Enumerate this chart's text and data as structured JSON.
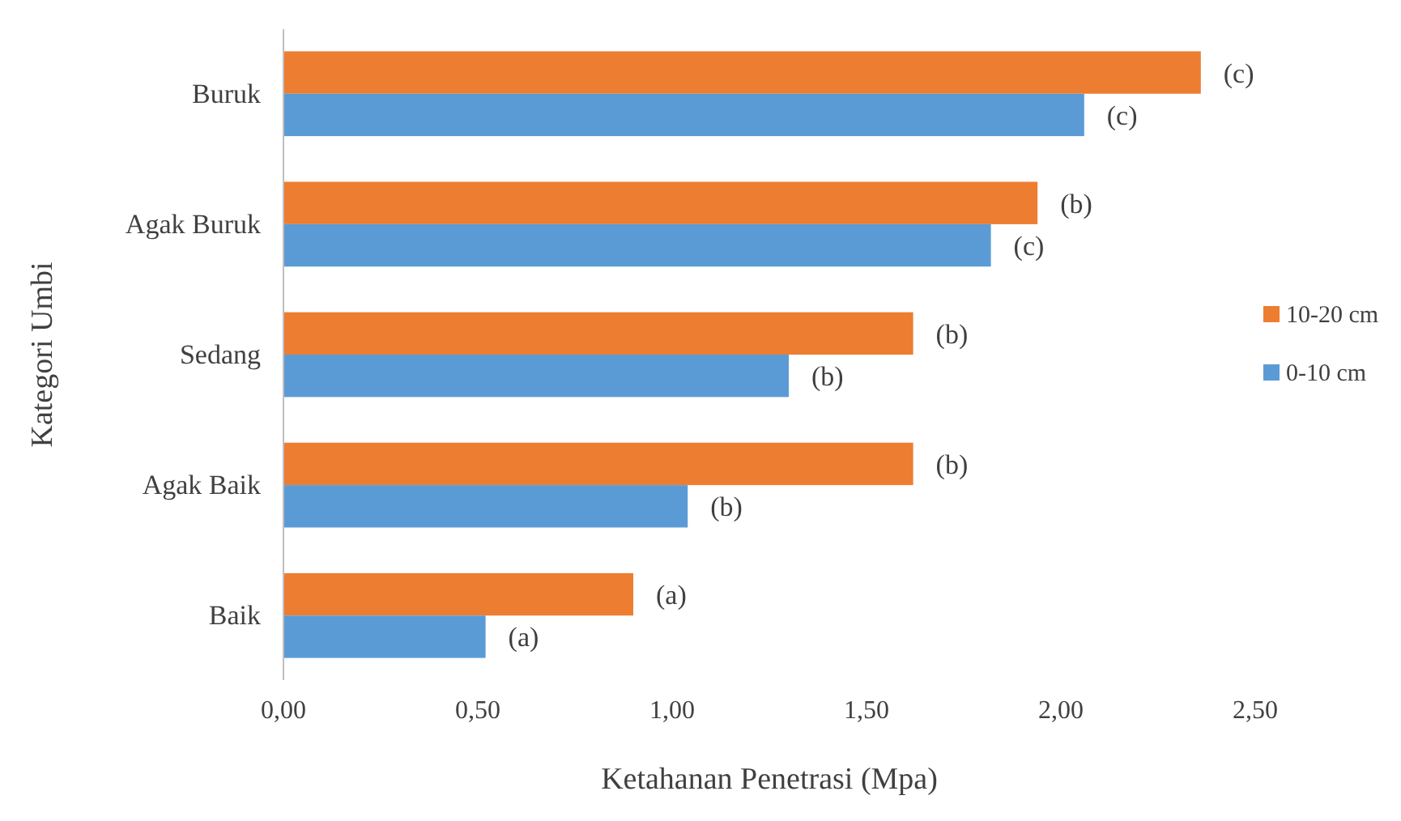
{
  "chart_data": {
    "type": "bar",
    "orientation": "horizontal",
    "xlabel": "Ketahanan Penetrasi (Mpa)",
    "ylabel": "Kategori Umbi",
    "categories": [
      "Buruk",
      "Agak Buruk",
      "Sedang",
      "Agak Baik",
      "Baik"
    ],
    "series": [
      {
        "name": "10-20 cm",
        "color": "#ed7d31",
        "values": [
          2.36,
          1.94,
          1.62,
          1.62,
          0.9
        ],
        "value_labels": [
          "(c)",
          "(b)",
          "(b)",
          "(b)",
          "(a)"
        ]
      },
      {
        "name": "0-10 cm",
        "color": "#5b9bd5",
        "values": [
          2.06,
          1.82,
          1.3,
          1.04,
          0.52
        ],
        "value_labels": [
          "(c)",
          "(c)",
          "(b)",
          "(b)",
          "(a)"
        ]
      }
    ],
    "xlim": [
      0,
      2.5
    ],
    "xticks": [
      {
        "value": 0,
        "label": "0,00"
      },
      {
        "value": 0.5,
        "label": "0,50"
      },
      {
        "value": 1,
        "label": "1,00"
      },
      {
        "value": 1.5,
        "label": "1,50"
      },
      {
        "value": 2,
        "label": "2,00"
      },
      {
        "value": 2.5,
        "label": "2,50"
      }
    ],
    "legend": "right"
  }
}
